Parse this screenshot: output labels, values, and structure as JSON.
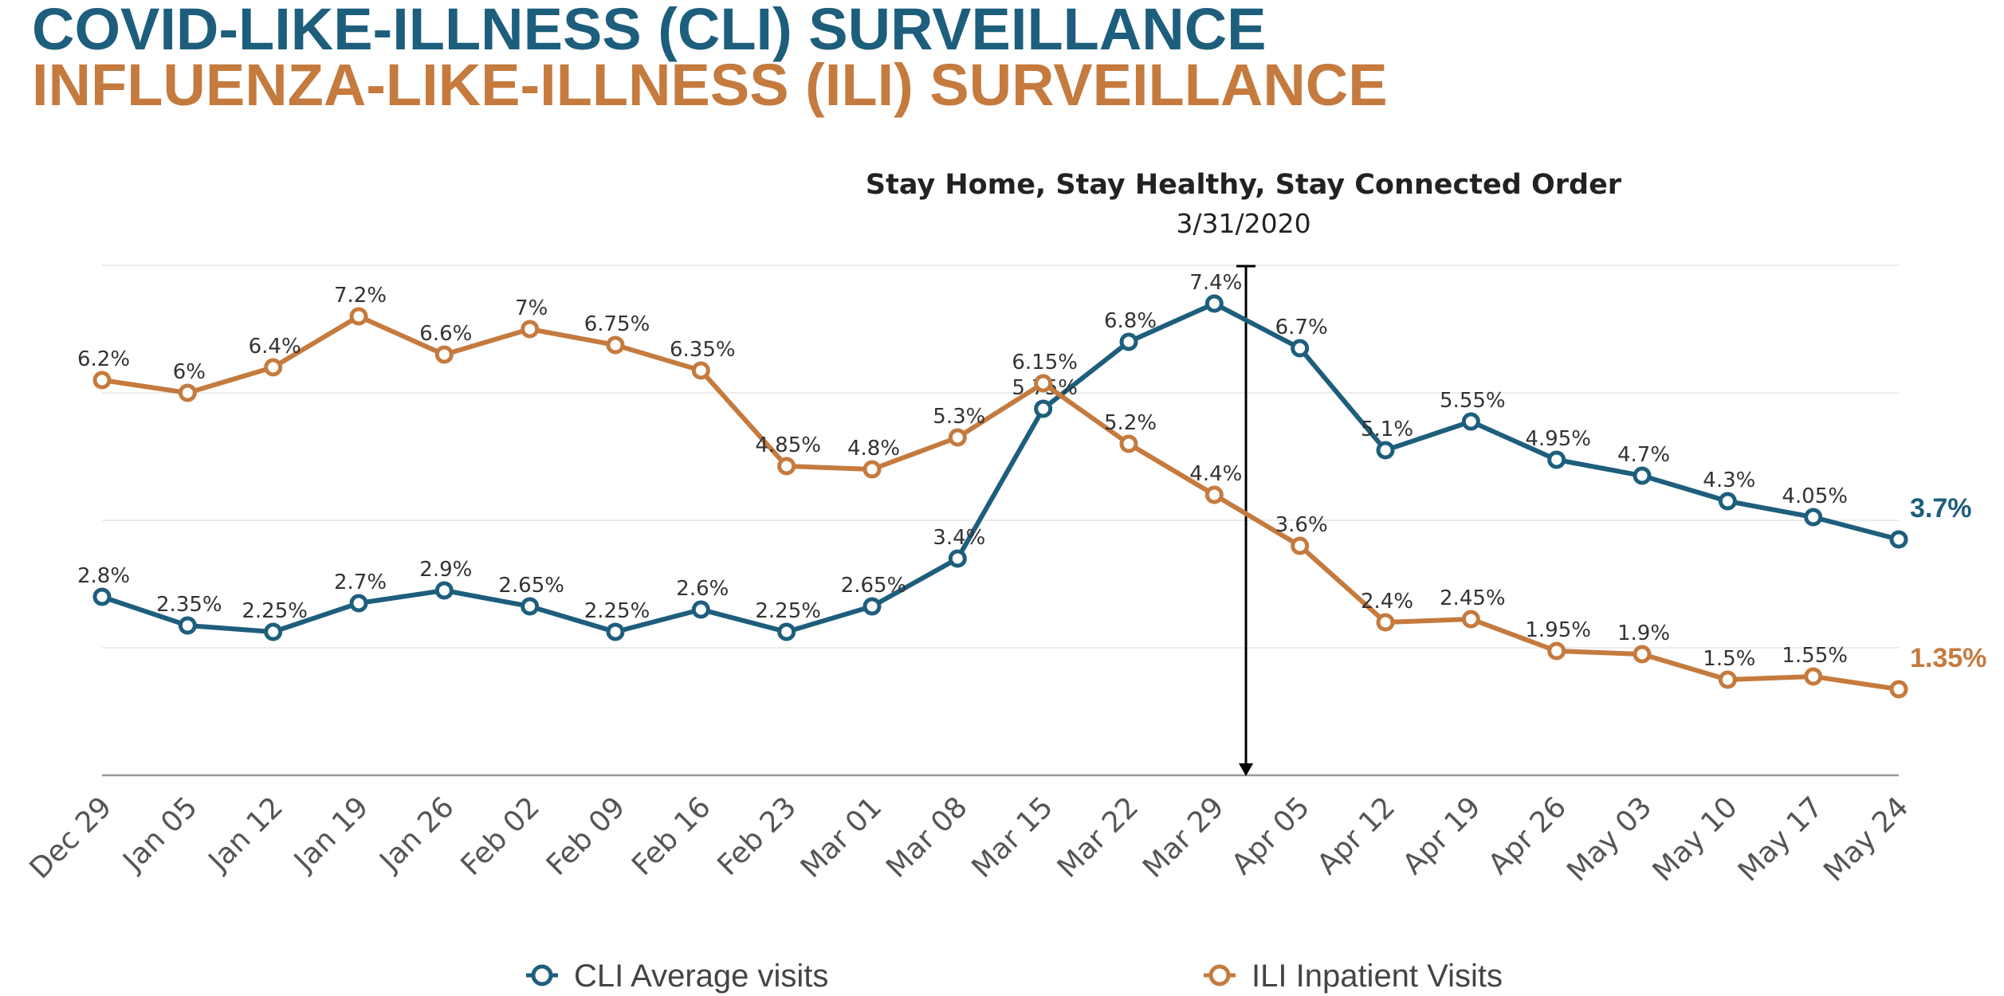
{
  "colors": {
    "cli": "#1d5e7c",
    "ili": "#c57a3e",
    "axis": "#999999",
    "grid": "#e6e6e6"
  },
  "header": {
    "title_cli": "COVID-LIKE-ILLNESS (CLI) SURVEILLANCE",
    "title_ili": "INFLUENZA-LIKE-ILLNESS (ILI) SURVEILLANCE"
  },
  "chart_data": {
    "type": "line",
    "categories": [
      "Dec 29",
      "Jan 05",
      "Jan 12",
      "Jan 19",
      "Jan 26",
      "Feb 02",
      "Feb 09",
      "Feb 16",
      "Feb 23",
      "Mar 01",
      "Mar 08",
      "Mar 15",
      "Mar 22",
      "Mar 29",
      "Apr 05",
      "Apr 12",
      "Apr 19",
      "Apr 26",
      "May 03",
      "May 10",
      "May 17",
      "May 24"
    ],
    "series": [
      {
        "name": "CLI Average visits",
        "color": "#1d5e7c",
        "values": [
          2.8,
          2.35,
          2.25,
          2.7,
          2.9,
          2.65,
          2.25,
          2.6,
          2.25,
          2.65,
          3.4,
          5.75,
          6.8,
          7.4,
          6.7,
          5.1,
          5.55,
          4.95,
          4.7,
          4.3,
          4.05,
          3.7
        ],
        "labels": [
          "2.8%",
          "2.35%",
          "2.25%",
          "2.7%",
          "2.9%",
          "2.65%",
          "2.25%",
          "2.6%",
          "2.25%",
          "2.65%",
          "3.4%",
          "5.75%",
          "6.8%",
          "7.4%",
          "6.7%",
          "5.1%",
          "5.55%",
          "4.95%",
          "4.7%",
          "4.3%",
          "4.05%",
          "3.7%"
        ]
      },
      {
        "name": "ILI Inpatient Visits",
        "color": "#c57a3e",
        "values": [
          6.2,
          6.0,
          6.4,
          7.2,
          6.6,
          7.0,
          6.75,
          6.35,
          4.85,
          4.8,
          5.3,
          6.15,
          5.2,
          4.4,
          3.6,
          2.4,
          2.45,
          1.95,
          1.9,
          1.5,
          1.55,
          1.35
        ],
        "labels": [
          "6.2%",
          "6%",
          "6.4%",
          "7.2%",
          "6.6%",
          "7%",
          "6.75%",
          "6.35%",
          "4.85%",
          "4.8%",
          "5.3%",
          "6.15%",
          "5.2%",
          "4.4%",
          "3.6%",
          "2.4%",
          "2.45%",
          "1.95%",
          "1.9%",
          "1.5%",
          "1.55%",
          "1.35%"
        ]
      }
    ],
    "ylim": [
      0,
      8
    ],
    "grid": true,
    "legend": "bottom",
    "annotation": {
      "title": "Stay Home, Stay Healthy,  Stay Connected Order",
      "date": "3/31/2020",
      "x_value": "Mar 29"
    }
  }
}
